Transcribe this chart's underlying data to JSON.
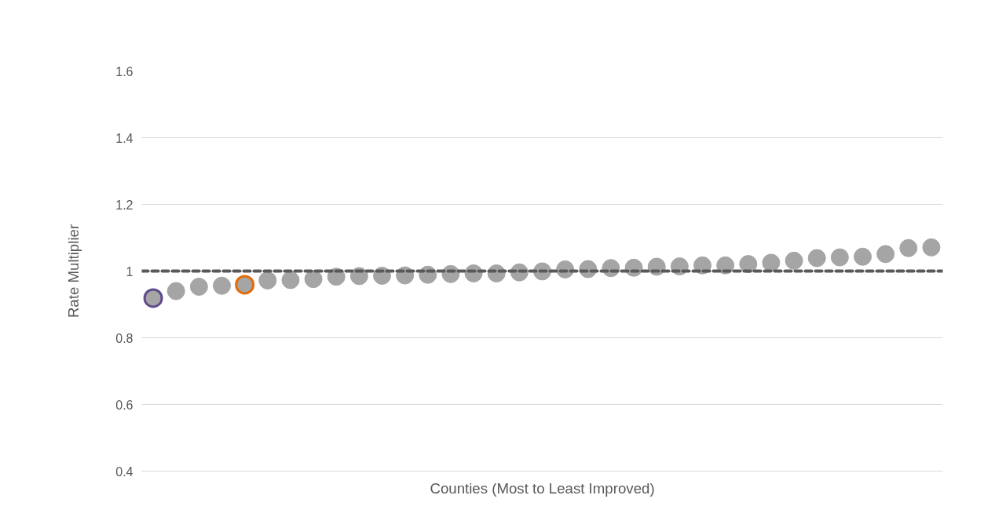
{
  "chart_data": {
    "type": "scatter",
    "xlabel": "Counties (Most to Least Improved)",
    "ylabel": "Rate Multiplier",
    "categories": [
      null,
      null,
      null,
      null,
      null,
      null,
      null,
      null,
      null,
      null,
      null,
      null,
      null,
      null,
      null,
      null,
      null,
      null,
      null,
      null,
      null,
      null,
      null,
      null,
      null,
      null,
      null,
      null,
      null,
      null,
      null,
      null,
      null,
      null,
      null
    ],
    "series": [
      {
        "color": "#a5a5a5",
        "values": [
          null,
          0.94,
          0.953,
          0.956,
          null,
          0.972,
          0.973,
          0.976,
          0.983,
          0.985,
          0.986,
          0.987,
          0.989,
          0.991,
          0.993,
          0.993,
          0.996,
          0.999,
          1.005,
          1.006,
          1.009,
          1.01,
          1.013,
          1.014,
          1.017,
          1.017,
          1.021,
          1.025,
          1.031,
          1.039,
          1.041,
          1.043,
          1.051,
          1.069,
          1.071
        ]
      },
      {
        "color": "#5f4b8b",
        "values": [
          0.919,
          null,
          null,
          null,
          null,
          null,
          null,
          null,
          null,
          null,
          null,
          null,
          null,
          null,
          null,
          null,
          null,
          null,
          null,
          null,
          null,
          null,
          null,
          null,
          null,
          null,
          null,
          null,
          null,
          null,
          null,
          null,
          null,
          null,
          null
        ]
      },
      {
        "color": "#e36c09",
        "values": [
          null,
          null,
          null,
          null,
          0.959,
          null,
          null,
          null,
          null,
          null,
          null,
          null,
          null,
          null,
          null,
          null,
          null,
          null,
          null,
          null,
          null,
          null,
          null,
          null,
          null,
          null,
          null,
          null,
          null,
          null,
          null,
          null,
          null,
          null,
          null
        ]
      }
    ],
    "marker": "circle",
    "ylim": [
      0.4,
      1.6
    ],
    "yticks": [
      0.4,
      0.6,
      0.8,
      1,
      1.2,
      1.4,
      1.6
    ],
    "grid": "y",
    "ref_lines": [
      {
        "axis": "y",
        "value": 1,
        "color": "#595959",
        "line_style": "dashed"
      }
    ]
  }
}
